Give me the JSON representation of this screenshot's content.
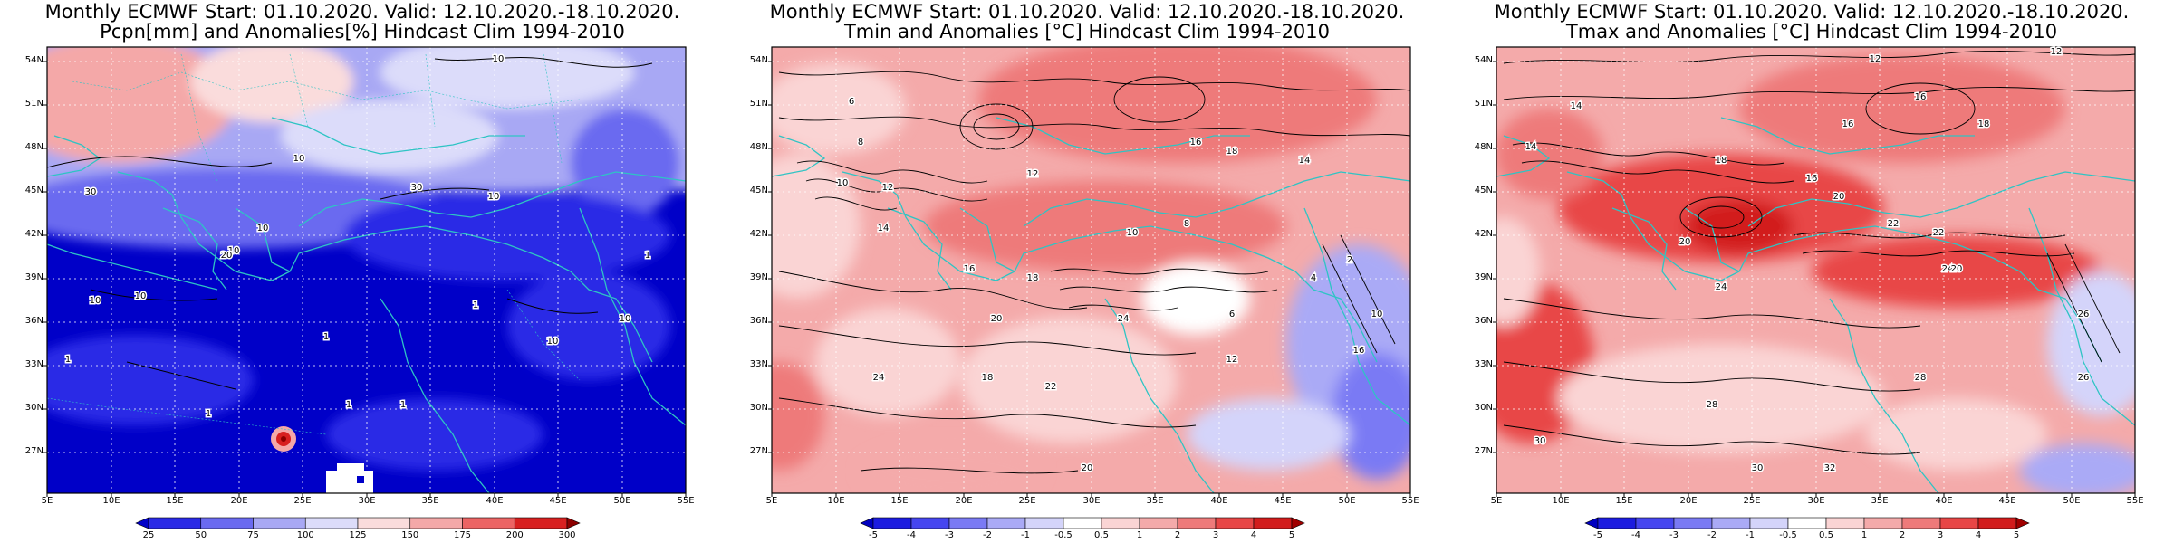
{
  "panels": [
    {
      "title_line1": "Monthly ECMWF Start: 01.10.2020. Valid: 12.10.2020.-18.10.2020.",
      "title_line2": "Pcpn[mm] and Anomalies[%] Hindcast Clim 1994-2010",
      "variable": "precipitation",
      "colorbar": {
        "labels": [
          "25",
          "50",
          "75",
          "100",
          "125",
          "150",
          "175",
          "200",
          "300"
        ],
        "colors": [
          "#0000c8",
          "#2a2ae6",
          "#6a6af0",
          "#a8a8f4",
          "#dcdcfa",
          "#fadcdc",
          "#f4a8a8",
          "#ec6464",
          "#d82020",
          "#8c0000"
        ]
      },
      "contour_labels": [
        "10",
        "30",
        "10",
        "10",
        "10",
        "10",
        "10",
        "30",
        "20",
        "10",
        "1",
        "1",
        "1",
        "1",
        "1",
        "1",
        "10",
        "10",
        "1"
      ]
    },
    {
      "title_line1": "Monthly ECMWF Start: 01.10.2020. Valid: 12.10.2020.-18.10.2020.",
      "title_line2": "Tmin and Anomalies [°C] Hindcast Clim 1994-2010",
      "variable": "tmin",
      "colorbar": {
        "labels": [
          "-5",
          "-4",
          "-3",
          "-2",
          "-1",
          "-0.5",
          "0.5",
          "1",
          "2",
          "3",
          "4",
          "5"
        ],
        "colors": [
          "#0000c0",
          "#1c1ce0",
          "#4646f0",
          "#7a7af4",
          "#aaaaf6",
          "#d4d4fa",
          "#ffffff",
          "#fad4d4",
          "#f4aaaa",
          "#ee7a7a",
          "#e84646",
          "#d21c1c",
          "#a00000"
        ]
      },
      "contour_labels": [
        "6",
        "8",
        "10",
        "12",
        "14",
        "16",
        "18",
        "20",
        "22",
        "24",
        "16",
        "18",
        "14",
        "12",
        "10",
        "8",
        "6",
        "4",
        "2",
        "18",
        "20",
        "24",
        "16",
        "10",
        "12"
      ]
    },
    {
      "title_line1": "Monthly ECMWF Start: 01.10.2020. Valid: 12.10.2020.-18.10.2020.",
      "title_line2": "Tmax and Anomalies [°C] Hindcast Clim 1994-2010",
      "variable": "tmax",
      "colorbar": {
        "labels": [
          "-5",
          "-4",
          "-3",
          "-2",
          "-1",
          "-0.5",
          "0.5",
          "1",
          "2",
          "3",
          "4",
          "5"
        ],
        "colors": [
          "#0000c0",
          "#1c1ce0",
          "#4646f0",
          "#7a7af4",
          "#aaaaf6",
          "#d4d4fa",
          "#ffffff",
          "#fad4d4",
          "#f4aaaa",
          "#ee7a7a",
          "#e84646",
          "#d21c1c",
          "#a00000"
        ]
      },
      "contour_labels": [
        "12",
        "14",
        "16",
        "18",
        "20",
        "22",
        "24",
        "26",
        "28",
        "30",
        "12",
        "14",
        "16",
        "18",
        "20",
        "22",
        "24",
        "26",
        "28",
        "30",
        "32",
        "20",
        "16"
      ]
    }
  ],
  "axes": {
    "lat_labels": [
      "54N",
      "51N",
      "48N",
      "45N",
      "42N",
      "39N",
      "36N",
      "33N",
      "30N",
      "27N"
    ],
    "lon_labels": [
      "5E",
      "10E",
      "15E",
      "20E",
      "25E",
      "30E",
      "35E",
      "40E",
      "45E",
      "50E",
      "55E"
    ]
  },
  "colors": {
    "coastline": "#2ec4c4",
    "contour": "#000000",
    "frame": "#000000"
  }
}
